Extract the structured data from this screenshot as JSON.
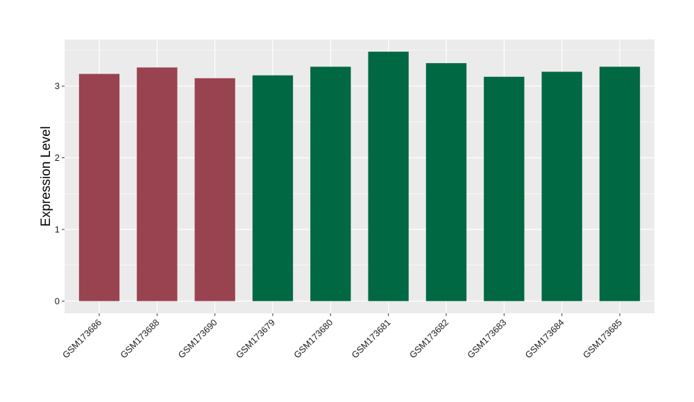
{
  "chart_data": {
    "type": "bar",
    "title": "",
    "xlabel": "",
    "ylabel": "Expression Level",
    "ylim": [
      -0.17,
      3.65
    ],
    "yticks": [
      0,
      1,
      2,
      3
    ],
    "grid": true,
    "legend": "none",
    "categories": [
      "GSM173686",
      "GSM173688",
      "GSM173690",
      "GSM173679",
      "GSM173680",
      "GSM173681",
      "GSM173682",
      "GSM173683",
      "GSM173684",
      "GSM173685"
    ],
    "values": [
      3.17,
      3.26,
      3.11,
      3.15,
      3.27,
      3.48,
      3.32,
      3.13,
      3.2,
      3.27
    ],
    "bar_colors": [
      "#9a4350",
      "#9a4350",
      "#9a4350",
      "#006843",
      "#006843",
      "#006843",
      "#006843",
      "#006843",
      "#006843",
      "#006843"
    ],
    "panel_background": "#ebebeb",
    "grid_color": "#ffffff"
  }
}
